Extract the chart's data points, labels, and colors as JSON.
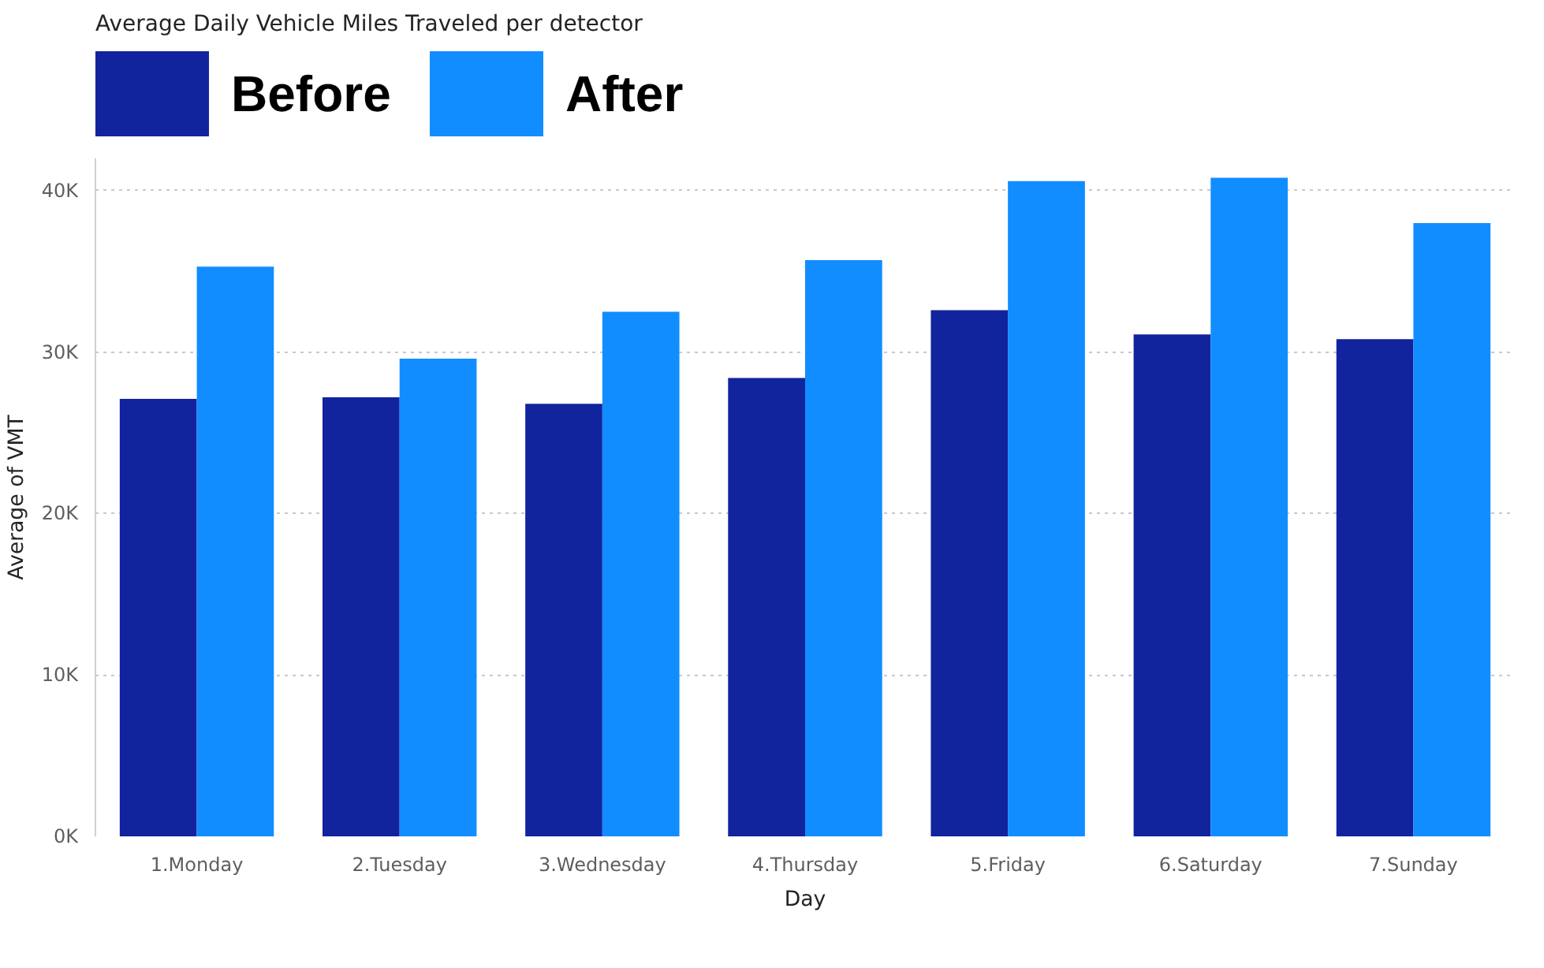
{
  "chart_data": {
    "type": "bar",
    "title": "Average Daily Vehicle Miles Traveled per detector",
    "xlabel": "Day",
    "ylabel": "Average of VMT",
    "categories": [
      "1.Monday",
      "2.Tuesday",
      "3.Wednesday",
      "4.Thursday",
      "5.Friday",
      "6.Saturday",
      "7.Sunday"
    ],
    "series": [
      {
        "name": "Before",
        "color": "#12239e",
        "values": [
          27100,
          27200,
          26800,
          28400,
          32600,
          31100,
          30800
        ]
      },
      {
        "name": "After",
        "color": "#118dff",
        "values": [
          35300,
          29600,
          32500,
          35700,
          40600,
          40800,
          38000
        ]
      }
    ],
    "ylim": [
      0,
      42000
    ],
    "yticks": [
      {
        "value": 0,
        "label": "0K"
      },
      {
        "value": 10000,
        "label": "10K"
      },
      {
        "value": 20000,
        "label": "20K"
      },
      {
        "value": 30000,
        "label": "30K"
      },
      {
        "value": 40000,
        "label": "40K"
      }
    ],
    "grid": "y",
    "legend": "top left"
  }
}
